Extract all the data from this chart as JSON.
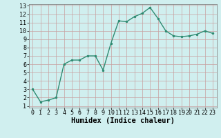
{
  "x": [
    0,
    1,
    2,
    3,
    4,
    5,
    6,
    7,
    8,
    9,
    10,
    11,
    12,
    13,
    14,
    15,
    16,
    17,
    18,
    19,
    20,
    21,
    22,
    23
  ],
  "y": [
    3.0,
    1.5,
    1.7,
    2.0,
    6.0,
    6.5,
    6.5,
    7.0,
    7.0,
    5.3,
    8.5,
    11.2,
    11.1,
    11.7,
    12.1,
    12.8,
    11.5,
    10.0,
    9.4,
    9.3,
    9.4,
    9.6,
    10.0,
    9.7
  ],
  "xlabel": "Humidex (Indice chaleur)",
  "ylim": [
    1,
    13
  ],
  "xlim": [
    -0.5,
    23.5
  ],
  "yticks": [
    1,
    2,
    3,
    4,
    5,
    6,
    7,
    8,
    9,
    10,
    11,
    12,
    13
  ],
  "xticks": [
    0,
    1,
    2,
    3,
    4,
    5,
    6,
    7,
    8,
    9,
    10,
    11,
    12,
    13,
    14,
    15,
    16,
    17,
    18,
    19,
    20,
    21,
    22,
    23
  ],
  "line_color": "#2e8b72",
  "marker_color": "#2e8b72",
  "bg_color": "#d0efef",
  "grid_color": "#c8a0a0",
  "xlabel_fontsize": 7.5,
  "tick_fontsize": 6.0,
  "line_width": 1.0,
  "marker_size": 2.5
}
